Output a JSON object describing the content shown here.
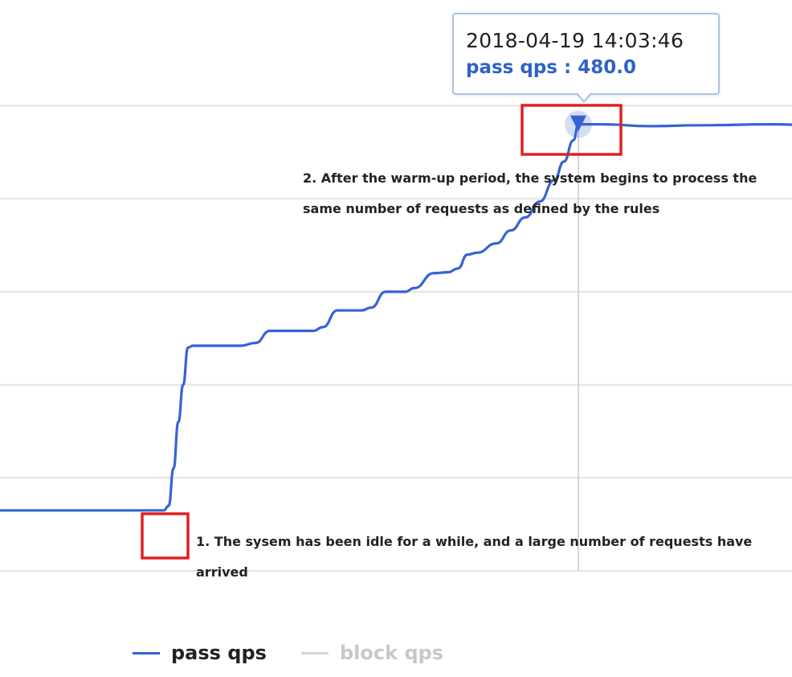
{
  "chart_data": {
    "type": "line",
    "series": [
      {
        "name": "pass qps",
        "color": "#3563d6",
        "values": [
          [
            0,
            65
          ],
          [
            5,
            65
          ],
          [
            10,
            65
          ],
          [
            15,
            65
          ],
          [
            20,
            65
          ],
          [
            25,
            65
          ],
          [
            30,
            65
          ],
          [
            34,
            65
          ],
          [
            35,
            70
          ],
          [
            36,
            110
          ],
          [
            37,
            160
          ],
          [
            38,
            200
          ],
          [
            39,
            240
          ],
          [
            40,
            242
          ],
          [
            45,
            242
          ],
          [
            50,
            242
          ],
          [
            53,
            245
          ],
          [
            56,
            258
          ],
          [
            60,
            258
          ],
          [
            65,
            258
          ],
          [
            67,
            262
          ],
          [
            70,
            280
          ],
          [
            75,
            280
          ],
          [
            77,
            283
          ],
          [
            80,
            300
          ],
          [
            84,
            300
          ],
          [
            86,
            304
          ],
          [
            90,
            320
          ],
          [
            93,
            321
          ],
          [
            95,
            325
          ],
          [
            97,
            340
          ],
          [
            99,
            342
          ],
          [
            103,
            352
          ],
          [
            106,
            366
          ],
          [
            109,
            380
          ],
          [
            112,
            397
          ],
          [
            115,
            420
          ],
          [
            117,
            440
          ],
          [
            119,
            463
          ],
          [
            120,
            480
          ],
          [
            125,
            480
          ],
          [
            135,
            478
          ],
          [
            145,
            479
          ],
          [
            160,
            480
          ],
          [
            170,
            479
          ]
        ]
      },
      {
        "name": "block qps",
        "color": "#d4d4d4",
        "values": []
      }
    ],
    "ylim": [
      0,
      500
    ],
    "y_gridlines": [
      0,
      100,
      200,
      300,
      400,
      500
    ],
    "grid": true,
    "legend": "bottom",
    "crosshair_x": 120
  },
  "tooltip": {
    "time": "2018-04-19 14:03:46",
    "value_label": "pass qps : 480.0"
  },
  "annotations": {
    "warmup_line1": "2. After the warm-up period, the system begins to process the",
    "warmup_line2": "same number of requests as defined by the rules",
    "idle_line1": "1. The sysem has been idle for a while, and a large number of requests have",
    "idle_line2": "arrived"
  },
  "colors": {
    "highlight_box": "#e02020",
    "grid": "#e3e3e3",
    "crosshair": "#c8c8c8"
  }
}
